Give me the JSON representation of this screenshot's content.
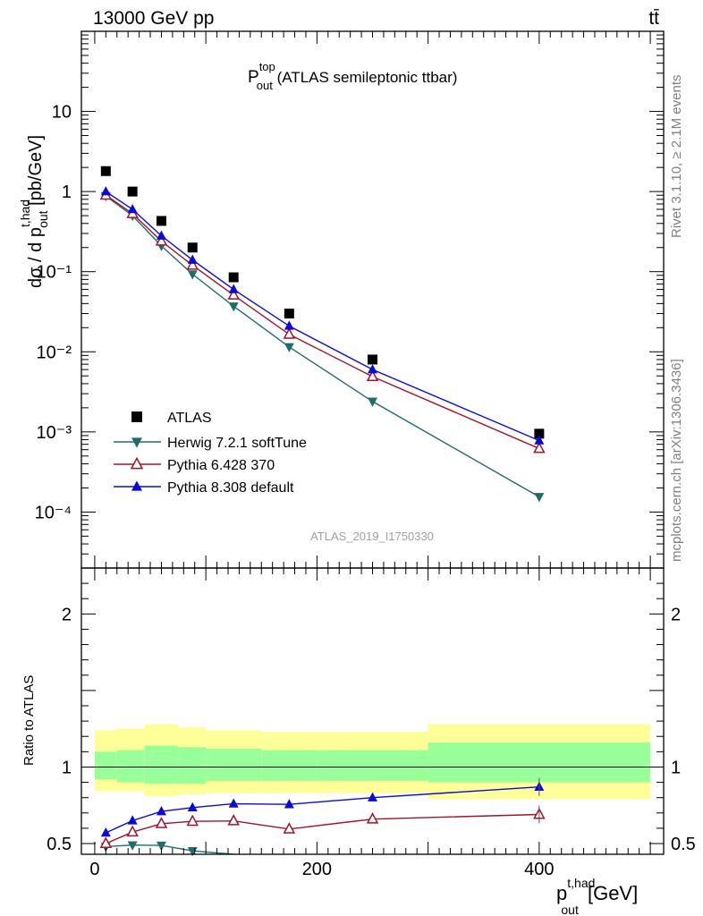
{
  "header": {
    "energy_label": "13000 GeV pp",
    "process_label": "tt̄"
  },
  "side_labels": {
    "rivet": "Rivet 3.1.10, ≥ 2.1M events",
    "mcplots": "mcplots.cern.ch [arXiv:1306.3436]"
  },
  "chart_data": [
    {
      "type": "scatter",
      "panel": "main",
      "title_main": "P",
      "title_sup": "top",
      "title_sub": "out",
      "title_rest": " (ATLAS semileptonic ttbar)",
      "ylabel": "dσ / d p",
      "ylabel_sup": "t,had",
      "ylabel_sub": "out",
      "ylabel_unit": " [pb/GeV]",
      "yscale": "log",
      "ylim": [
        2e-05,
        100
      ],
      "xlim": [
        -12,
        512
      ],
      "ytick_labels": [
        "10",
        "1",
        "10⁻¹",
        "10⁻²",
        "10⁻³",
        "10⁻⁴"
      ],
      "watermark": "ATLAS_2019_I1750330",
      "legend_position": "bottom-left",
      "series": [
        {
          "name": "ATLAS",
          "color": "#000000",
          "marker": "square",
          "x": [
            10,
            34,
            60,
            88,
            125,
            175,
            250,
            400
          ],
          "y": [
            1.8,
            1.0,
            0.43,
            0.2,
            0.085,
            0.03,
            0.008,
            0.00095
          ]
        },
        {
          "name": "Herwig 7.2.1 softTune",
          "color": "#216b6b",
          "marker": "triangle-down",
          "x": [
            10,
            34,
            60,
            88,
            125,
            175,
            250,
            400
          ],
          "y": [
            0.88,
            0.5,
            0.21,
            0.093,
            0.037,
            0.0115,
            0.0024,
            0.000155
          ]
        },
        {
          "name": "Pythia 6.428 370",
          "color": "#a0142b",
          "marker": "triangle-up-open",
          "x": [
            10,
            34,
            60,
            88,
            125,
            175,
            250,
            400
          ],
          "y": [
            0.9,
            0.53,
            0.24,
            0.12,
            0.051,
            0.0165,
            0.0049,
            0.00062
          ]
        },
        {
          "name": "Pythia 8.308 default",
          "color": "#0a0ad6",
          "marker": "triangle-up",
          "x": [
            10,
            34,
            60,
            88,
            125,
            175,
            250,
            400
          ],
          "y": [
            1.0,
            0.6,
            0.28,
            0.14,
            0.06,
            0.021,
            0.006,
            0.00078
          ]
        }
      ]
    },
    {
      "type": "line",
      "panel": "ratio",
      "ylabel": "Ratio to ATLAS",
      "ylim": [
        0.43,
        2.3
      ],
      "xlim": [
        -12,
        512
      ],
      "ytick_labels": [
        "0.5",
        "1",
        "2"
      ],
      "xtick_labels": [
        "0",
        "200",
        "400"
      ],
      "xlabel": "p",
      "xlabel_sup": "t,had",
      "xlabel_sub": "out",
      "xlabel_unit": " [GeV]",
      "reference_line": 1,
      "bands": [
        {
          "x_lo": 0,
          "x_hi": 20,
          "yellow": [
            0.84,
            1.24
          ],
          "green": [
            0.92,
            1.1
          ]
        },
        {
          "x_lo": 20,
          "x_hi": 45,
          "yellow": [
            0.84,
            1.25
          ],
          "green": [
            0.9,
            1.11
          ]
        },
        {
          "x_lo": 45,
          "x_hi": 75,
          "yellow": [
            0.81,
            1.28
          ],
          "green": [
            0.89,
            1.14
          ]
        },
        {
          "x_lo": 75,
          "x_hi": 100,
          "yellow": [
            0.82,
            1.26
          ],
          "green": [
            0.89,
            1.13
          ]
        },
        {
          "x_lo": 100,
          "x_hi": 150,
          "yellow": [
            0.83,
            1.24
          ],
          "green": [
            0.91,
            1.12
          ]
        },
        {
          "x_lo": 150,
          "x_hi": 200,
          "yellow": [
            0.83,
            1.23
          ],
          "green": [
            0.91,
            1.11
          ]
        },
        {
          "x_lo": 200,
          "x_hi": 300,
          "yellow": [
            0.83,
            1.23
          ],
          "green": [
            0.91,
            1.11
          ]
        },
        {
          "x_lo": 300,
          "x_hi": 500,
          "yellow": [
            0.79,
            1.28
          ],
          "green": [
            0.9,
            1.16
          ]
        }
      ],
      "series": [
        {
          "name": "Herwig 7.2.1 softTune",
          "color": "#216b6b",
          "marker": "triangle-down",
          "x": [
            10,
            34,
            60,
            88,
            125,
            175
          ],
          "y": [
            0.48,
            0.49,
            0.488,
            0.452,
            0.43,
            0.36
          ]
        },
        {
          "name": "Pythia 6.428 370",
          "color": "#a0142b",
          "marker": "triangle-up-open",
          "x": [
            10,
            34,
            60,
            88,
            125,
            175,
            250,
            400
          ],
          "y": [
            0.5,
            0.575,
            0.63,
            0.645,
            0.648,
            0.595,
            0.66,
            0.69
          ]
        },
        {
          "name": "Pythia 8.308 default",
          "color": "#0a0ad6",
          "marker": "triangle-up",
          "x": [
            10,
            34,
            60,
            88,
            125,
            175,
            250,
            400
          ],
          "y": [
            0.57,
            0.65,
            0.71,
            0.735,
            0.76,
            0.756,
            0.8,
            0.87
          ]
        }
      ]
    }
  ]
}
